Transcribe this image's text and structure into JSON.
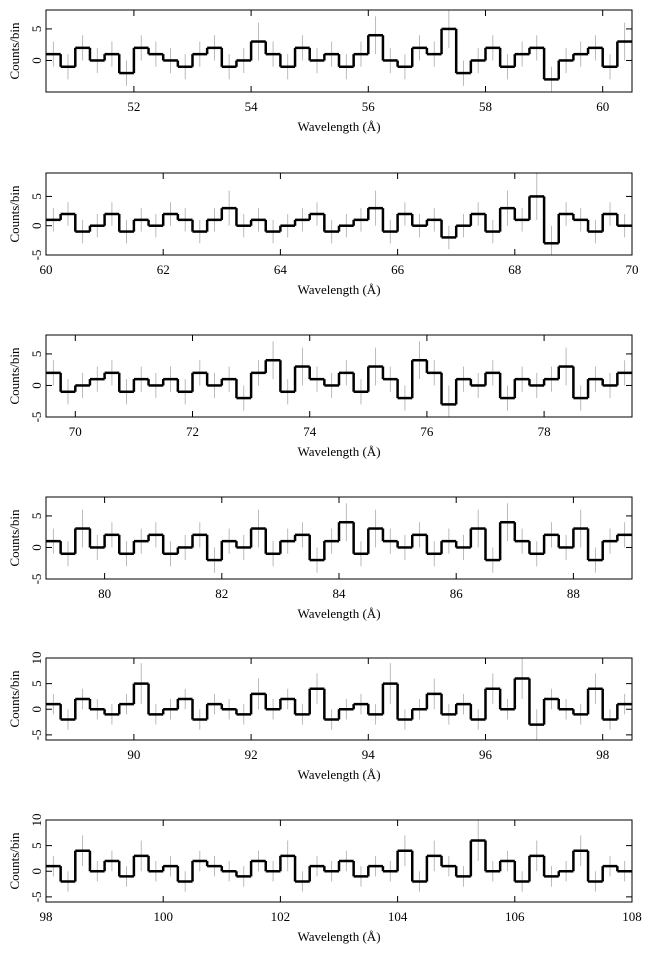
{
  "chart_data": [
    {
      "type": "histogram",
      "xlabel": "Wavelength (Å)",
      "ylabel": "Counts/bin",
      "color": "#000000",
      "error_color": "#aaaaaa",
      "bins": [
        50.5,
        50.75,
        51,
        51.25,
        51.5,
        51.75,
        52,
        52.25,
        52.5,
        52.75,
        53,
        53.25,
        53.5,
        53.75,
        54,
        54.25,
        54.5,
        54.75,
        55,
        55.25,
        55.5,
        55.75,
        56,
        56.25,
        56.5,
        56.75,
        57,
        57.25,
        57.5,
        57.75,
        58,
        58.25,
        58.5,
        58.75,
        59,
        59.25,
        59.5,
        59.75,
        60,
        60.25,
        60.5
      ],
      "values": [
        1,
        -1,
        2,
        0,
        1,
        -2,
        2,
        1,
        0,
        -1,
        1,
        2,
        -1,
        0,
        3,
        1,
        -1,
        2,
        0,
        1,
        -1,
        1,
        4,
        0,
        -1,
        2,
        1,
        5,
        -2,
        0,
        2,
        -1,
        1,
        2,
        -3,
        0,
        1,
        2,
        -1,
        3
      ],
      "errors": [
        2,
        2,
        2,
        2,
        2,
        2,
        2,
        2,
        2,
        2,
        2,
        2,
        2,
        2,
        3,
        2,
        2,
        2,
        2,
        2,
        2,
        2,
        3,
        2,
        2,
        2,
        2,
        3,
        2,
        2,
        2,
        2,
        2,
        2,
        2,
        2,
        2,
        2,
        2,
        3
      ],
      "xlim": [
        50.5,
        60.5
      ],
      "xticks": [
        52,
        54,
        56,
        58,
        60
      ],
      "ylim": [
        -5,
        8
      ],
      "yticks": [
        0,
        5
      ]
    },
    {
      "type": "histogram",
      "xlabel": "Wavelength (Å)",
      "ylabel": "Counts/bin",
      "color": "#000000",
      "error_color": "#aaaaaa",
      "bins": [
        60,
        60.25,
        60.5,
        60.75,
        61,
        61.25,
        61.5,
        61.75,
        62,
        62.25,
        62.5,
        62.75,
        63,
        63.25,
        63.5,
        63.75,
        64,
        64.25,
        64.5,
        64.75,
        65,
        65.25,
        65.5,
        65.75,
        66,
        66.25,
        66.5,
        66.75,
        67,
        67.25,
        67.5,
        67.75,
        68,
        68.25,
        68.5,
        68.75,
        69,
        69.25,
        69.5,
        69.75,
        70
      ],
      "values": [
        1,
        2,
        -1,
        0,
        2,
        -1,
        1,
        0,
        2,
        1,
        -1,
        1,
        3,
        0,
        1,
        -1,
        0,
        1,
        2,
        -1,
        0,
        1,
        3,
        -1,
        2,
        0,
        1,
        -2,
        0,
        2,
        -1,
        3,
        1,
        5,
        -3,
        2,
        1,
        -1,
        2,
        0
      ],
      "errors": [
        2,
        2,
        2,
        2,
        2,
        2,
        2,
        2,
        2,
        2,
        2,
        2,
        3,
        2,
        2,
        2,
        2,
        2,
        2,
        2,
        2,
        2,
        3,
        2,
        2,
        2,
        2,
        2,
        2,
        2,
        2,
        3,
        2,
        4,
        3,
        2,
        2,
        2,
        2,
        2
      ],
      "xlim": [
        60,
        70
      ],
      "xticks": [
        60,
        62,
        64,
        66,
        68,
        70
      ],
      "ylim": [
        -5,
        9
      ],
      "yticks": [
        -5,
        0,
        5
      ]
    },
    {
      "type": "histogram",
      "xlabel": "Wavelength (Å)",
      "ylabel": "Counts/bin",
      "color": "#000000",
      "error_color": "#aaaaaa",
      "bins": [
        69.5,
        69.75,
        70,
        70.25,
        70.5,
        70.75,
        71,
        71.25,
        71.5,
        71.75,
        72,
        72.25,
        72.5,
        72.75,
        73,
        73.25,
        73.5,
        73.75,
        74,
        74.25,
        74.5,
        74.75,
        75,
        75.25,
        75.5,
        75.75,
        76,
        76.25,
        76.5,
        76.75,
        77,
        77.25,
        77.5,
        77.75,
        78,
        78.25,
        78.5,
        78.75,
        79,
        79.25,
        79.5
      ],
      "values": [
        2,
        -1,
        0,
        1,
        2,
        -1,
        1,
        0,
        1,
        -1,
        2,
        0,
        1,
        -2,
        2,
        4,
        -1,
        3,
        1,
        0,
        2,
        -1,
        3,
        1,
        -2,
        4,
        2,
        -3,
        1,
        0,
        2,
        -2,
        1,
        0,
        1,
        3,
        -2,
        1,
        0,
        2
      ],
      "errors": [
        2,
        2,
        2,
        2,
        2,
        2,
        2,
        2,
        2,
        2,
        2,
        2,
        2,
        2,
        2,
        3,
        2,
        3,
        2,
        2,
        2,
        2,
        3,
        2,
        2,
        3,
        2,
        3,
        2,
        2,
        2,
        2,
        2,
        2,
        2,
        3,
        2,
        2,
        2,
        2
      ],
      "xlim": [
        69.5,
        79.5
      ],
      "xticks": [
        70,
        72,
        74,
        76,
        78
      ],
      "ylim": [
        -5,
        8
      ],
      "yticks": [
        -5,
        0,
        5
      ]
    },
    {
      "type": "histogram",
      "xlabel": "Wavelength (Å)",
      "ylabel": "Counts/bin",
      "color": "#000000",
      "error_color": "#aaaaaa",
      "bins": [
        79,
        79.25,
        79.5,
        79.75,
        80,
        80.25,
        80.5,
        80.75,
        81,
        81.25,
        81.5,
        81.75,
        82,
        82.25,
        82.5,
        82.75,
        83,
        83.25,
        83.5,
        83.75,
        84,
        84.25,
        84.5,
        84.75,
        85,
        85.25,
        85.5,
        85.75,
        86,
        86.25,
        86.5,
        86.75,
        87,
        87.25,
        87.5,
        87.75,
        88,
        88.25,
        88.5,
        88.75,
        89
      ],
      "values": [
        1,
        -1,
        3,
        0,
        2,
        -1,
        1,
        2,
        -1,
        0,
        2,
        -2,
        1,
        0,
        3,
        -1,
        1,
        2,
        -2,
        1,
        4,
        -1,
        3,
        1,
        0,
        2,
        -1,
        1,
        0,
        3,
        -2,
        4,
        1,
        -1,
        2,
        0,
        3,
        -2,
        1,
        2
      ],
      "errors": [
        2,
        2,
        3,
        2,
        2,
        2,
        2,
        2,
        2,
        2,
        2,
        2,
        2,
        2,
        3,
        2,
        2,
        2,
        2,
        2,
        3,
        2,
        3,
        2,
        2,
        2,
        2,
        2,
        2,
        3,
        2,
        3,
        2,
        2,
        2,
        2,
        3,
        2,
        2,
        2
      ],
      "xlim": [
        79,
        89
      ],
      "xticks": [
        80,
        82,
        84,
        86,
        88
      ],
      "ylim": [
        -5,
        8
      ],
      "yticks": [
        -5,
        0,
        5
      ]
    },
    {
      "type": "histogram",
      "xlabel": "Wavelength (Å)",
      "ylabel": "Counts/bin",
      "color": "#000000",
      "error_color": "#aaaaaa",
      "bins": [
        88.5,
        88.75,
        89,
        89.25,
        89.5,
        89.75,
        90,
        90.25,
        90.5,
        90.75,
        91,
        91.25,
        91.5,
        91.75,
        92,
        92.25,
        92.5,
        92.75,
        93,
        93.25,
        93.5,
        93.75,
        94,
        94.25,
        94.5,
        94.75,
        95,
        95.25,
        95.5,
        95.75,
        96,
        96.25,
        96.5,
        96.75,
        97,
        97.25,
        97.5,
        97.75,
        98,
        98.25,
        98.5
      ],
      "values": [
        1,
        -2,
        2,
        0,
        -1,
        1,
        5,
        -1,
        0,
        2,
        -2,
        1,
        0,
        -1,
        3,
        0,
        2,
        -1,
        4,
        -2,
        0,
        1,
        -1,
        5,
        -2,
        0,
        3,
        -1,
        1,
        -2,
        4,
        0,
        6,
        -3,
        2,
        0,
        -1,
        4,
        -2,
        1
      ],
      "errors": [
        2,
        2,
        2,
        2,
        2,
        2,
        4,
        2,
        2,
        2,
        2,
        2,
        2,
        2,
        3,
        2,
        2,
        2,
        3,
        2,
        2,
        2,
        2,
        4,
        2,
        2,
        3,
        2,
        2,
        2,
        3,
        2,
        4,
        3,
        2,
        2,
        2,
        3,
        2,
        2
      ],
      "xlim": [
        88.5,
        98.5
      ],
      "xticks": [
        90,
        92,
        94,
        96,
        98
      ],
      "ylim": [
        -6,
        10
      ],
      "yticks": [
        -5,
        0,
        5,
        10
      ]
    },
    {
      "type": "histogram",
      "xlabel": "Wavelength (Å)",
      "ylabel": "Counts/bin",
      "color": "#000000",
      "error_color": "#aaaaaa",
      "bins": [
        98,
        98.25,
        98.5,
        98.75,
        99,
        99.25,
        99.5,
        99.75,
        100,
        100.25,
        100.5,
        100.75,
        101,
        101.25,
        101.5,
        101.75,
        102,
        102.25,
        102.5,
        102.75,
        103,
        103.25,
        103.5,
        103.75,
        104,
        104.25,
        104.5,
        104.75,
        105,
        105.25,
        105.5,
        105.75,
        106,
        106.25,
        106.5,
        106.75,
        107,
        107.25,
        107.5,
        107.75,
        108
      ],
      "values": [
        1,
        -2,
        4,
        0,
        2,
        -1,
        3,
        0,
        1,
        -2,
        2,
        1,
        0,
        -1,
        2,
        0,
        3,
        -2,
        1,
        0,
        2,
        -1,
        1,
        0,
        4,
        -2,
        3,
        1,
        -1,
        6,
        0,
        2,
        -2,
        3,
        -1,
        0,
        4,
        -2,
        1,
        0
      ],
      "errors": [
        2,
        2,
        3,
        2,
        2,
        2,
        3,
        2,
        2,
        2,
        2,
        2,
        2,
        2,
        2,
        2,
        3,
        2,
        2,
        2,
        2,
        2,
        2,
        2,
        3,
        2,
        3,
        2,
        2,
        4,
        2,
        2,
        2,
        3,
        2,
        2,
        3,
        2,
        2,
        2
      ],
      "xlim": [
        98,
        108
      ],
      "xticks": [
        98,
        100,
        102,
        104,
        106,
        108
      ],
      "ylim": [
        -6,
        10
      ],
      "yticks": [
        -5,
        0,
        5,
        10
      ]
    }
  ]
}
